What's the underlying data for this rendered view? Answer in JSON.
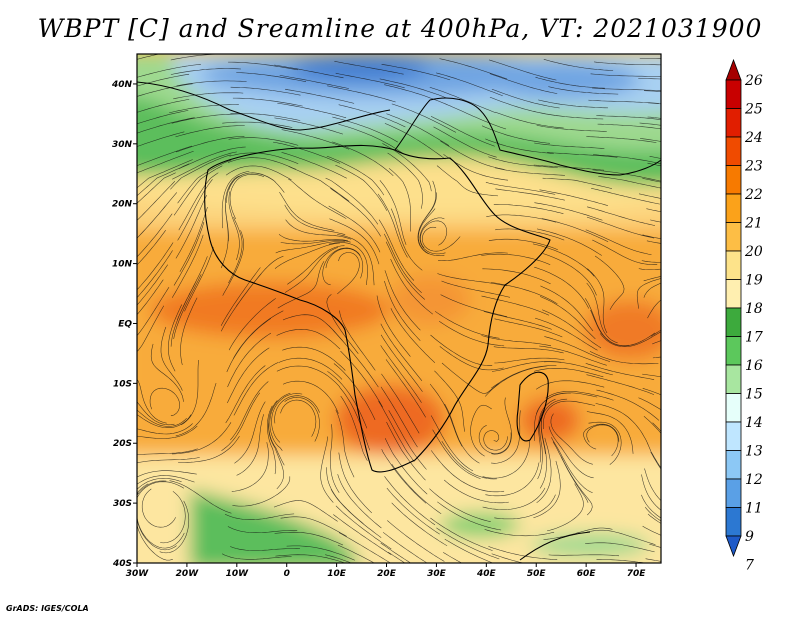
{
  "title": "WBPT [C] and Sreamline at 400hPa, VT: 2021031900",
  "credit": "GrADS: IGES/COLA",
  "map": {
    "lon_range": [
      -30,
      75
    ],
    "lat_range": [
      -40,
      45
    ],
    "x_ticks": [
      {
        "value": -30,
        "label": "30W"
      },
      {
        "value": -20,
        "label": "20W"
      },
      {
        "value": -10,
        "label": "10W"
      },
      {
        "value": 0,
        "label": "0"
      },
      {
        "value": 10,
        "label": "10E"
      },
      {
        "value": 20,
        "label": "20E"
      },
      {
        "value": 30,
        "label": "30E"
      },
      {
        "value": 40,
        "label": "40E"
      },
      {
        "value": 50,
        "label": "50E"
      },
      {
        "value": 60,
        "label": "60E"
      },
      {
        "value": 70,
        "label": "70E"
      }
    ],
    "y_ticks": [
      {
        "value": 40,
        "label": "40N"
      },
      {
        "value": 30,
        "label": "30N"
      },
      {
        "value": 20,
        "label": "20N"
      },
      {
        "value": 10,
        "label": "10N"
      },
      {
        "value": 0,
        "label": "EQ"
      },
      {
        "value": -10,
        "label": "10S"
      },
      {
        "value": -20,
        "label": "20S"
      },
      {
        "value": -30,
        "label": "30S"
      },
      {
        "value": -40,
        "label": "40S"
      }
    ]
  },
  "colorbar": {
    "levels": [
      "26",
      "25",
      "24",
      "23",
      "22",
      "21",
      "20",
      "19",
      "18",
      "17",
      "16",
      "15",
      "14",
      "13",
      "12",
      "11",
      "9",
      "7"
    ],
    "colors": [
      "#a50000",
      "#c80000",
      "#e11e00",
      "#f04b00",
      "#f77a00",
      "#fba21a",
      "#fdbe45",
      "#fde38a",
      "#ffefb0",
      "#3daa3d",
      "#5cc85c",
      "#a8e6a0",
      "#e6fffa",
      "#bfe6ff",
      "#8cc8f5",
      "#5aa0e6",
      "#2c78d2",
      "#1e5ac8"
    ]
  }
}
